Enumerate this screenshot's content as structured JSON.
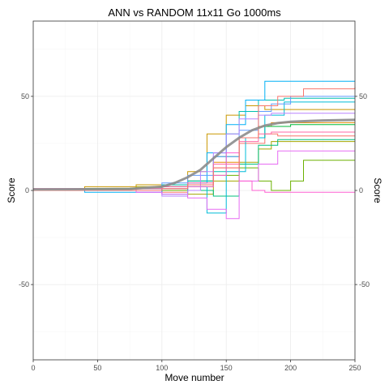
{
  "chart_data": {
    "type": "line",
    "title": "ANN vs RANDOM 11x11 Go 1000ms",
    "xlabel": "Move number",
    "ylabel": "Score",
    "ylabel_right": "Score",
    "xlim": [
      0,
      250
    ],
    "ylim": [
      -90,
      90
    ],
    "x_ticks": [
      0,
      50,
      100,
      150,
      200,
      250
    ],
    "y_ticks": [
      -50,
      0,
      50
    ],
    "grid": true,
    "series": [
      {
        "color": "#F8766D",
        "x": [
          0,
          40,
          80,
          100,
          120,
          140,
          160,
          180,
          190,
          250
        ],
        "y": [
          0,
          1,
          0,
          -1,
          3,
          12,
          25,
          30,
          29,
          29
        ]
      },
      {
        "color": "#E58700",
        "x": [
          0,
          40,
          80,
          100,
          120,
          140,
          160,
          175,
          185,
          250
        ],
        "y": [
          0,
          0,
          1,
          2,
          5,
          15,
          28,
          34,
          36,
          36
        ]
      },
      {
        "color": "#C99800",
        "x": [
          0,
          40,
          80,
          100,
          120,
          135,
          150,
          165,
          180,
          250
        ],
        "y": [
          1,
          2,
          3,
          2,
          10,
          30,
          40,
          45,
          43,
          43
        ]
      },
      {
        "color": "#A3A500",
        "x": [
          0,
          40,
          80,
          100,
          120,
          140,
          160,
          175,
          185,
          250
        ],
        "y": [
          0,
          0,
          2,
          0,
          -2,
          5,
          15,
          22,
          26,
          26
        ]
      },
      {
        "color": "#6BB100",
        "x": [
          0,
          40,
          80,
          100,
          120,
          140,
          160,
          175,
          185,
          200,
          210,
          250
        ],
        "y": [
          0,
          1,
          1,
          0,
          2,
          8,
          12,
          5,
          0,
          5,
          16,
          16
        ]
      },
      {
        "color": "#00BA38",
        "x": [
          0,
          40,
          80,
          100,
          120,
          140,
          160,
          180,
          200,
          250
        ],
        "y": [
          0,
          1,
          0,
          3,
          5,
          18,
          28,
          34,
          35,
          35
        ]
      },
      {
        "color": "#00BF7D",
        "x": [
          0,
          40,
          80,
          100,
          120,
          140,
          160,
          175,
          190,
          250
        ],
        "y": [
          0,
          0,
          0,
          1,
          0,
          -3,
          14,
          24,
          27,
          27
        ]
      },
      {
        "color": "#00C0AF",
        "x": [
          0,
          40,
          80,
          100,
          120,
          140,
          150,
          160,
          175,
          195,
          250
        ],
        "y": [
          0,
          0,
          1,
          3,
          5,
          10,
          30,
          42,
          48,
          49,
          49
        ]
      },
      {
        "color": "#00BCD8",
        "x": [
          0,
          40,
          80,
          100,
          120,
          135,
          150,
          165,
          180,
          195,
          250
        ],
        "y": [
          0,
          0,
          0,
          -2,
          2,
          -12,
          10,
          28,
          40,
          47,
          47
        ]
      },
      {
        "color": "#00B0F6",
        "x": [
          0,
          40,
          80,
          100,
          120,
          135,
          150,
          165,
          180,
          190,
          250
        ],
        "y": [
          0,
          -1,
          -1,
          2,
          4,
          20,
          35,
          48,
          58,
          58,
          58
        ]
      },
      {
        "color": "#619CFF",
        "x": [
          0,
          40,
          80,
          100,
          120,
          140,
          160,
          175,
          185,
          200,
          250
        ],
        "y": [
          0,
          0,
          1,
          4,
          8,
          18,
          32,
          42,
          46,
          50,
          50
        ]
      },
      {
        "color": "#B983FF",
        "x": [
          0,
          40,
          80,
          100,
          120,
          130,
          140,
          150,
          160,
          175,
          185,
          250
        ],
        "y": [
          0,
          0,
          -1,
          -3,
          0,
          10,
          20,
          30,
          38,
          40,
          41,
          41
        ]
      },
      {
        "color": "#E76BF3",
        "x": [
          0,
          40,
          80,
          100,
          120,
          135,
          150,
          160,
          175,
          190,
          250
        ],
        "y": [
          1,
          0,
          -1,
          -2,
          -4,
          -10,
          -15,
          5,
          14,
          21,
          21
        ]
      },
      {
        "color": "#FD61D1",
        "x": [
          0,
          40,
          80,
          100,
          120,
          140,
          150,
          160,
          170,
          180,
          250
        ],
        "y": [
          0,
          0,
          0,
          1,
          2,
          8,
          20,
          5,
          0,
          -1,
          -1
        ]
      },
      {
        "color": "#FF67A4",
        "x": [
          0,
          40,
          80,
          100,
          120,
          140,
          160,
          175,
          185,
          250
        ],
        "y": [
          0,
          0,
          1,
          2,
          4,
          14,
          26,
          30,
          31,
          31
        ]
      },
      {
        "color": "#F8766D",
        "x": [
          0,
          40,
          80,
          100,
          120,
          140,
          160,
          175,
          190,
          210,
          250
        ],
        "y": [
          0,
          0,
          0,
          1,
          3,
          12,
          28,
          45,
          50,
          54,
          55
        ]
      }
    ],
    "trend": {
      "color": "#8c8c8c",
      "x": [
        0,
        25,
        50,
        75,
        100,
        110,
        120,
        130,
        140,
        150,
        160,
        170,
        180,
        190,
        200,
        225,
        250
      ],
      "y": [
        0.5,
        0.6,
        0.7,
        0.8,
        2,
        4,
        7,
        11,
        17,
        23,
        28,
        32,
        34.5,
        35.8,
        36.5,
        37.2,
        37.5
      ]
    }
  }
}
